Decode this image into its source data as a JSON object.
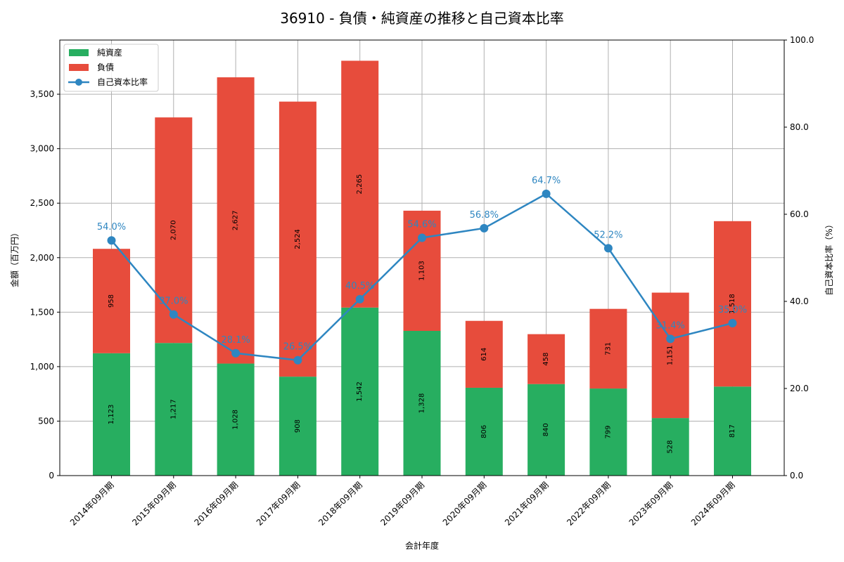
{
  "chart_data": {
    "type": "bar",
    "title": "36910 - 負債・純資産の推移と自己資本比率",
    "xlabel": "会計年度",
    "ylabel": "金額（百万円）",
    "y2label": "自己資本比率（%）",
    "categories": [
      "2014年09月期",
      "2015年09月期",
      "2016年09月期",
      "2017年09月期",
      "2018年09月期",
      "2019年09月期",
      "2020年09月期",
      "2021年09月期",
      "2022年09月期",
      "2023年09月期",
      "2024年09月期"
    ],
    "series": [
      {
        "name": "純資産",
        "type": "bar",
        "stack": "total",
        "color": "#27ae60",
        "values": [
          1123,
          1217,
          1028,
          908,
          1542,
          1328,
          806,
          840,
          799,
          528,
          817
        ],
        "labels": [
          "1,123",
          "1,217",
          "1,028",
          "908",
          "1,542",
          "1,328",
          "806",
          "840",
          "799",
          "528",
          "817"
        ]
      },
      {
        "name": "負債",
        "type": "bar",
        "stack": "total",
        "color": "#e74c3c",
        "values": [
          958,
          2070,
          2627,
          2524,
          2265,
          1103,
          614,
          458,
          731,
          1151,
          1518
        ],
        "labels": [
          "958",
          "2,070",
          "2,627",
          "2,524",
          "2,265",
          "1,103",
          "614",
          "458",
          "731",
          "1,151",
          "1,518"
        ]
      },
      {
        "name": "自己資本比率",
        "type": "line",
        "axis": "right",
        "color": "#2e86c1",
        "values": [
          54.0,
          37.0,
          28.1,
          26.5,
          40.5,
          54.6,
          56.8,
          64.7,
          52.2,
          31.4,
          35.0
        ],
        "labels": [
          "54.0%",
          "37.0%",
          "28.1%",
          "26.5%",
          "40.5%",
          "54.6%",
          "56.8%",
          "64.7%",
          "52.2%",
          "31.4%",
          "35.0%"
        ]
      }
    ],
    "ylim": [
      0,
      3997
    ],
    "y2lim": [
      0,
      100
    ],
    "yticks": [
      0,
      500,
      1000,
      1500,
      2000,
      2500,
      3000,
      3500
    ],
    "ytick_labels": [
      "0",
      "500",
      "1,000",
      "1,500",
      "2,000",
      "2,500",
      "3,000",
      "3,500"
    ],
    "y2ticks": [
      0,
      20,
      40,
      60,
      80,
      100
    ],
    "y2tick_labels": [
      "0.0",
      "20.0",
      "40.0",
      "60.0",
      "80.0",
      "100.0"
    ],
    "grid": true,
    "legend_position": "upper left"
  },
  "legend": {
    "items": [
      {
        "label": "純資産",
        "kind": "bar",
        "color": "#27ae60"
      },
      {
        "label": "負債",
        "kind": "bar",
        "color": "#e74c3c"
      },
      {
        "label": "自己資本比率",
        "kind": "line",
        "color": "#2e86c1"
      }
    ]
  }
}
